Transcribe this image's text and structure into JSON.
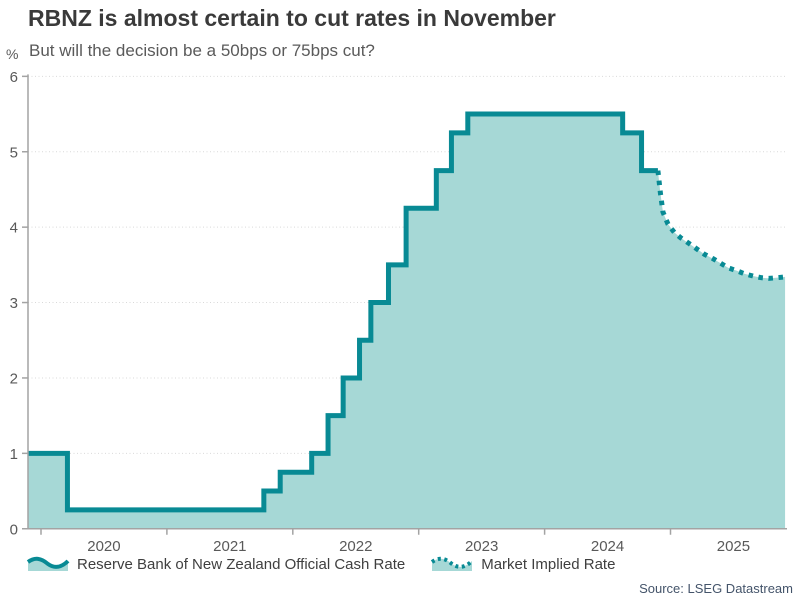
{
  "header": {
    "title": "RBNZ is almost certain to cut rates in November",
    "subtitle": "But will the decision be a 50bps or 75bps cut?"
  },
  "axes": {
    "y_unit_label": "%",
    "y_ticks": [
      "0",
      "1",
      "2",
      "3",
      "4",
      "5",
      "6"
    ],
    "x_ticks": [
      "2020",
      "2021",
      "2022",
      "2023",
      "2024",
      "2025"
    ]
  },
  "legend": {
    "items": [
      {
        "label": "Reserve Bank of New Zealand Official Cash Rate",
        "style": "solid"
      },
      {
        "label": "Market Implied Rate",
        "style": "dotted"
      }
    ]
  },
  "source": "Source: LSEG Datastream",
  "colors": {
    "line": "#088a94",
    "fill": "#a6d8d6",
    "grid": "#d9d9d9",
    "axis": "#a3a3a3",
    "title_text": "#3a3a3a",
    "body_text": "#595959",
    "source_text": "#44546a"
  },
  "chart_data": {
    "type": "area",
    "title": "RBNZ is almost certain to cut rates in November",
    "subtitle": "But will the decision be a 50bps or 75bps cut?",
    "ylabel": "%",
    "ylim": [
      0,
      6
    ],
    "xlim": [
      2019.9,
      2025.93
    ],
    "grid": "dotted horizontal gridlines at integers 1-6",
    "legend_position": "bottom",
    "series": [
      {
        "name": "Reserve Bank of New Zealand Official Cash Rate",
        "type": "step-area",
        "line_style": "solid",
        "points": [
          [
            2019.9,
            1.0
          ],
          [
            2020.21,
            0.25
          ],
          [
            2021.77,
            0.5
          ],
          [
            2021.9,
            0.75
          ],
          [
            2022.15,
            1.0
          ],
          [
            2022.28,
            1.5
          ],
          [
            2022.4,
            2.0
          ],
          [
            2022.53,
            2.5
          ],
          [
            2022.62,
            3.0
          ],
          [
            2022.76,
            3.5
          ],
          [
            2022.9,
            4.25
          ],
          [
            2023.14,
            4.75
          ],
          [
            2023.26,
            5.25
          ],
          [
            2023.39,
            5.5
          ],
          [
            2024.62,
            5.25
          ],
          [
            2024.77,
            4.75
          ],
          [
            2024.9,
            4.75
          ]
        ]
      },
      {
        "name": "Market Implied Rate",
        "type": "line-area",
        "line_style": "dotted",
        "points": [
          [
            2024.9,
            4.75
          ],
          [
            2024.92,
            4.45
          ],
          [
            2024.94,
            4.2
          ],
          [
            2024.98,
            4.04
          ],
          [
            2025.03,
            3.93
          ],
          [
            2025.08,
            3.86
          ],
          [
            2025.15,
            3.78
          ],
          [
            2025.21,
            3.71
          ],
          [
            2025.27,
            3.64
          ],
          [
            2025.34,
            3.58
          ],
          [
            2025.4,
            3.52
          ],
          [
            2025.46,
            3.46
          ],
          [
            2025.53,
            3.42
          ],
          [
            2025.59,
            3.38
          ],
          [
            2025.66,
            3.35
          ],
          [
            2025.72,
            3.33
          ],
          [
            2025.78,
            3.32
          ],
          [
            2025.85,
            3.33
          ],
          [
            2025.91,
            3.34
          ]
        ]
      }
    ]
  }
}
